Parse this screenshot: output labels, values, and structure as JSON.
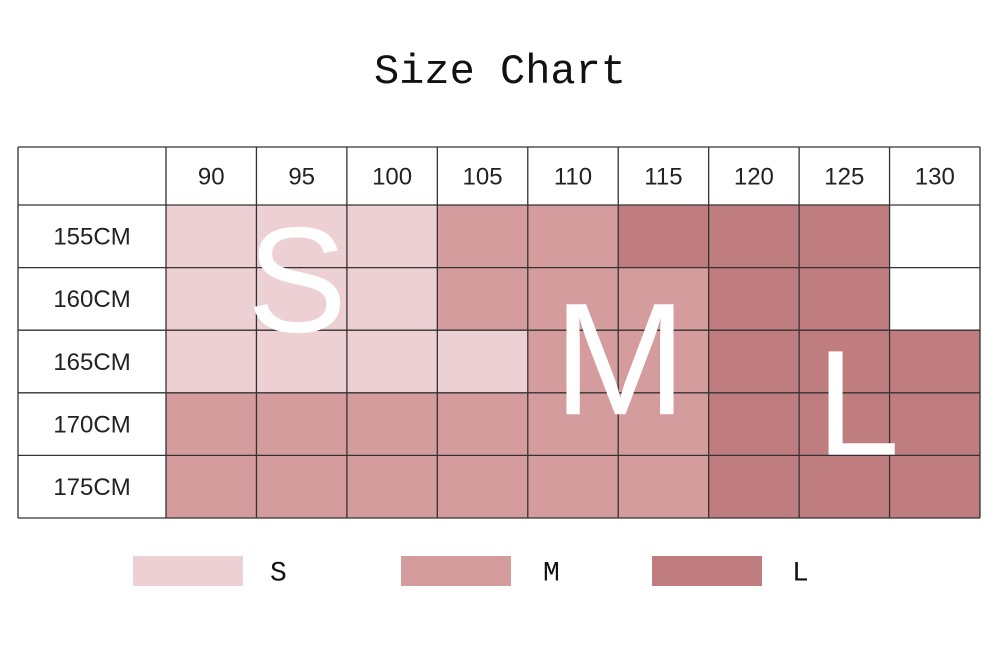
{
  "title": "Size Chart",
  "table": {
    "columns": [
      90,
      95,
      100,
      105,
      110,
      115,
      120,
      125,
      130
    ],
    "rows": [
      {
        "label": "155CM",
        "sizes": [
          "S",
          "S",
          "S",
          "M",
          "M",
          "L",
          "L",
          "L",
          null
        ]
      },
      {
        "label": "160CM",
        "sizes": [
          "S",
          "S",
          "S",
          "M",
          "M",
          "M",
          "L",
          "L",
          null
        ]
      },
      {
        "label": "165CM",
        "sizes": [
          "S",
          "S",
          "S",
          "S",
          "M",
          "M",
          "L",
          "L",
          "L"
        ]
      },
      {
        "label": "170CM",
        "sizes": [
          "M",
          "M",
          "M",
          "M",
          "M",
          "M",
          "L",
          "L",
          "L"
        ]
      },
      {
        "label": "175CM",
        "sizes": [
          "M",
          "M",
          "M",
          "M",
          "M",
          "M",
          "L",
          "L",
          "L"
        ]
      }
    ]
  },
  "overlay": [
    "S",
    "M",
    "L"
  ],
  "legend": [
    {
      "label": "S",
      "color": "#ecd0d3"
    },
    {
      "label": "M",
      "color": "#d49c9d"
    },
    {
      "label": "L",
      "color": "#c07d7f"
    }
  ]
}
